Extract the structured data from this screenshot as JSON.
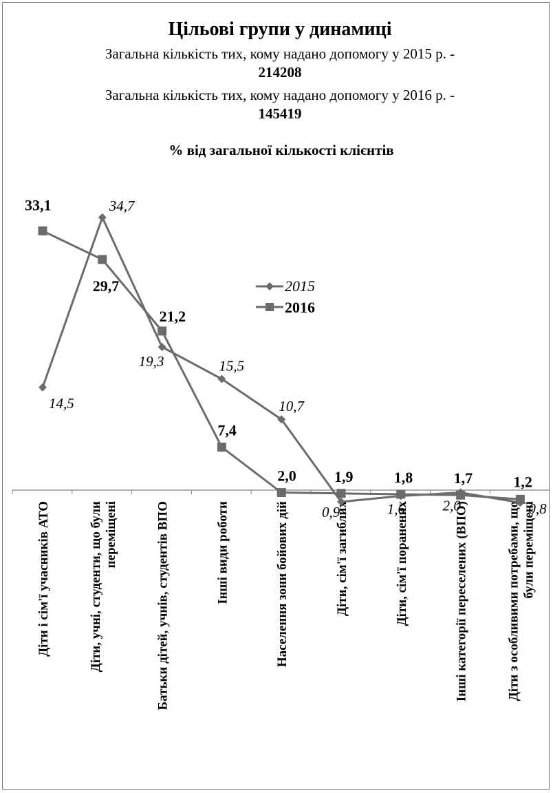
{
  "chart_data": {
    "type": "line",
    "title": "Цільові групи у динамиці",
    "subtitle_lines": [
      "Загальна кількість тих, кому надано допомогу у 2015 р. -",
      "214208",
      "Загальна кількість тих, кому надано допомогу у 2016 р. -",
      "145419"
    ],
    "ylabel": "% від загальної кількості клієнтів",
    "ylim": [
      0,
      36
    ],
    "grid": false,
    "legend": "center",
    "categories": [
      "Діти і сім'ї учасників АТО",
      [
        "Діти, учні, студенти, що були",
        "переміщені"
      ],
      "Батьки дітей, учнів, студентів ВПО",
      "Інші види роботи",
      "Населення зони бойових дій",
      "Діти, сім'ї загиблих",
      "Діти, сім'ї поранених",
      "Інші категорії переселених (ВПО)",
      [
        "Діти з особливими потребами, що",
        "були переміщені"
      ]
    ],
    "series": [
      {
        "name": "2015",
        "marker": "diamond",
        "values": [
          14.5,
          34.7,
          19.3,
          15.5,
          10.7,
          0.9,
          1.6,
          2.0,
          0.8
        ],
        "labels": [
          "14,5",
          "34,7",
          "19,3",
          "15,5",
          "10,7",
          "0,9",
          "1,6",
          "2,0",
          "0,8"
        ]
      },
      {
        "name": "2016",
        "marker": "square",
        "values": [
          33.1,
          29.7,
          21.2,
          7.4,
          2.0,
          1.9,
          1.8,
          1.7,
          1.2
        ],
        "labels": [
          "33,1",
          "29,7",
          "21,2",
          "7,4",
          "2,0",
          "1,9",
          "1,8",
          "1,7",
          "1,2"
        ]
      }
    ]
  },
  "colors": {
    "line": "#6b6b6b",
    "text": "#000000",
    "frame": "#7a7a7a"
  }
}
